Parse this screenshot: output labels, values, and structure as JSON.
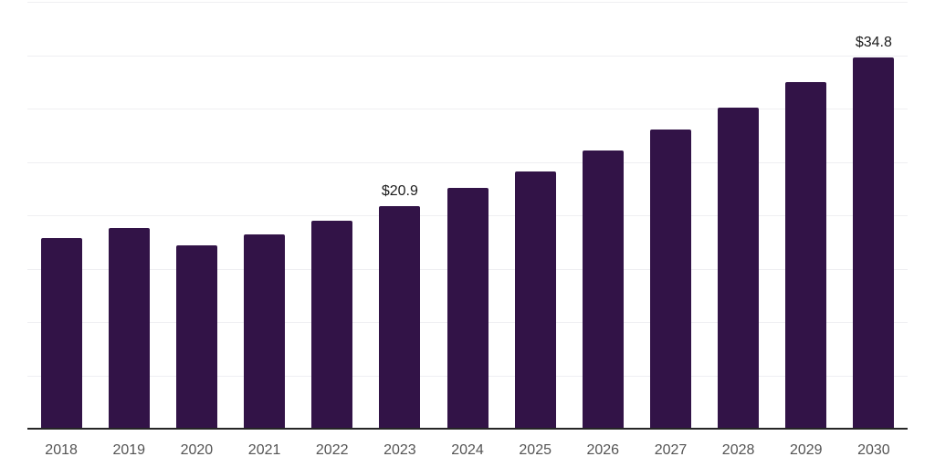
{
  "chart_data": {
    "type": "bar",
    "title": "",
    "xlabel": "",
    "ylabel": "",
    "categories": [
      "2018",
      "2019",
      "2020",
      "2021",
      "2022",
      "2023",
      "2024",
      "2025",
      "2026",
      "2027",
      "2028",
      "2029",
      "2030"
    ],
    "values": [
      17.9,
      18.8,
      17.2,
      18.2,
      19.5,
      20.9,
      22.6,
      24.1,
      26.1,
      28.0,
      30.1,
      32.5,
      34.8
    ],
    "annotations": [
      {
        "category": "2023",
        "text": "$20.9"
      },
      {
        "category": "2030",
        "text": "$34.8"
      }
    ],
    "ylim": [
      0,
      40
    ],
    "grid_step": 5,
    "grid": true,
    "legend": false,
    "y_axis_tick_labels_visible": false,
    "colors": {
      "bar": "#321347",
      "gridline": "#efeff2",
      "axis_line": "#262626",
      "tick_label": "#545454",
      "value_label": "#1c1c1c",
      "background": "#ffffff"
    }
  }
}
